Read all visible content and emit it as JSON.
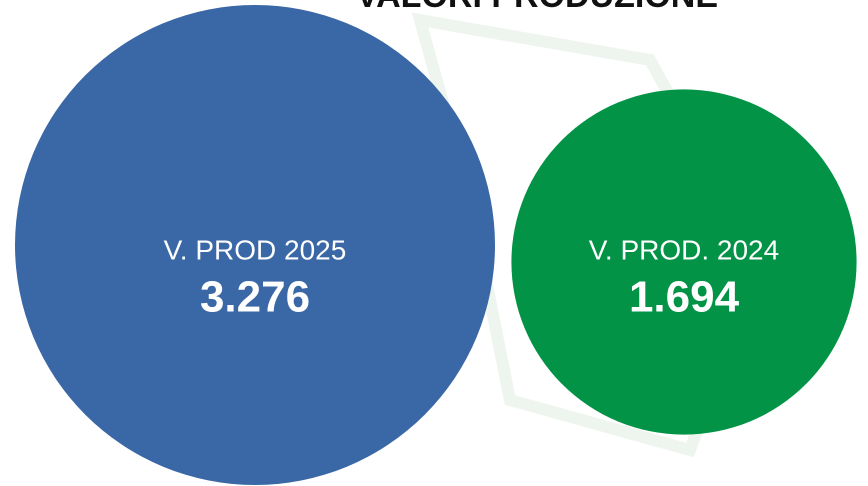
{
  "chart_data": {
    "type": "bubble",
    "title": "VALORI PRODUZIONE",
    "categories": [
      "V. PROD 2025",
      "V. PROD. 2024"
    ],
    "values": [
      3276,
      1694
    ],
    "value_labels": [
      "3.276",
      "1.694"
    ],
    "colors": [
      "#3a67a5",
      "#029346"
    ]
  }
}
